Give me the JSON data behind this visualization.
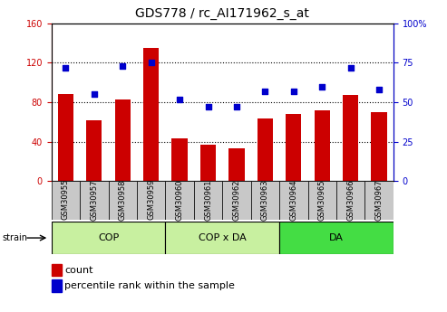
{
  "title": "GDS778 / rc_AI171962_s_at",
  "categories": [
    "GSM30955",
    "GSM30957",
    "GSM30958",
    "GSM30959",
    "GSM30960",
    "GSM30961",
    "GSM30962",
    "GSM30963",
    "GSM30964",
    "GSM30965",
    "GSM30966",
    "GSM30967"
  ],
  "count": [
    88,
    62,
    83,
    135,
    43,
    37,
    33,
    63,
    68,
    72,
    87,
    70
  ],
  "percentile": [
    72,
    55,
    73,
    75,
    52,
    47,
    47,
    57,
    57,
    60,
    72,
    58
  ],
  "bar_color": "#cc0000",
  "dot_color": "#0000cc",
  "left_ylim": [
    0,
    160
  ],
  "right_ylim": [
    0,
    100
  ],
  "left_yticks": [
    0,
    40,
    80,
    120,
    160
  ],
  "right_yticks": [
    0,
    25,
    50,
    75,
    100
  ],
  "right_yticklabels": [
    "0",
    "25",
    "50",
    "75",
    "100%"
  ],
  "groups": [
    {
      "label": "COP",
      "start": 0,
      "end": 3,
      "color": "#c8f0a0"
    },
    {
      "label": "COP x DA",
      "start": 4,
      "end": 7,
      "color": "#c8f0a0"
    },
    {
      "label": "DA",
      "start": 8,
      "end": 11,
      "color": "#44dd44"
    }
  ],
  "strain_label": "strain",
  "legend_count_label": "count",
  "legend_percentile_label": "percentile rank within the sample",
  "bar_color_legend": "#cc0000",
  "dot_color_legend": "#0000cc",
  "title_fontsize": 10,
  "tick_fontsize": 7,
  "group_label_fontsize": 8,
  "legend_fontsize": 8,
  "cat_fontsize": 6,
  "tick_area_bg": "#c8c8c8"
}
